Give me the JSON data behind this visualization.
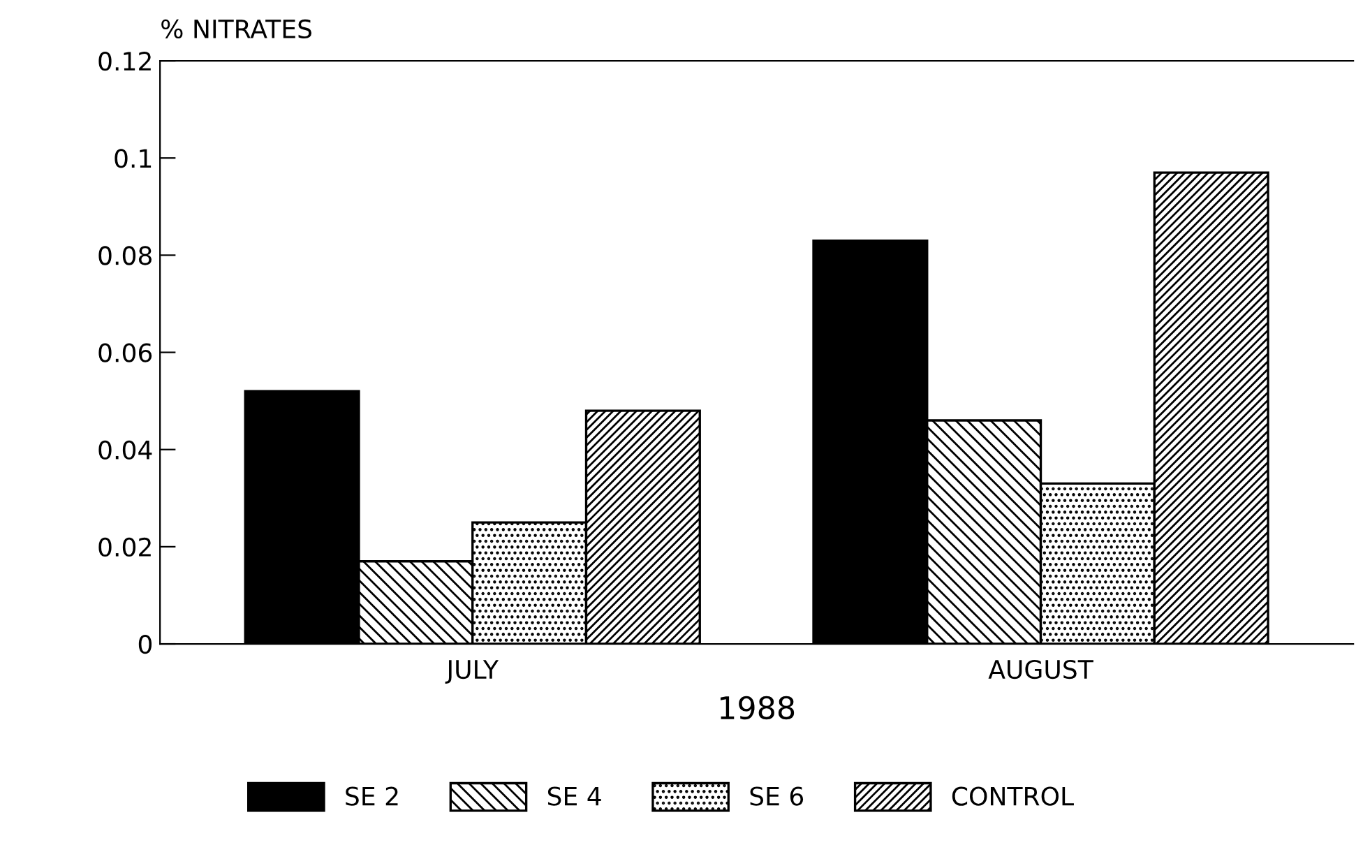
{
  "chart_data": {
    "type": "bar",
    "ylabel": "% NITRATES",
    "xlabel": "1988",
    "categories": [
      "JULY",
      "AUGUST"
    ],
    "series": [
      {
        "name": "SE 2",
        "color": "#000000",
        "values": [
          0.052,
          0.083
        ]
      },
      {
        "name": "SE 4",
        "color": "#000000",
        "values": [
          0.017,
          0.046
        ]
      },
      {
        "name": "SE 6",
        "color": "#000000",
        "values": [
          0.025,
          0.033
        ]
      },
      {
        "name": "CONTROL",
        "color": "#000000",
        "values": [
          0.048,
          0.097
        ]
      }
    ],
    "ylim": [
      0,
      0.12
    ],
    "yticks": [
      0,
      0.02,
      0.04,
      0.06,
      0.08,
      0.1,
      0.12
    ],
    "grid": false,
    "legend": "bottom"
  }
}
